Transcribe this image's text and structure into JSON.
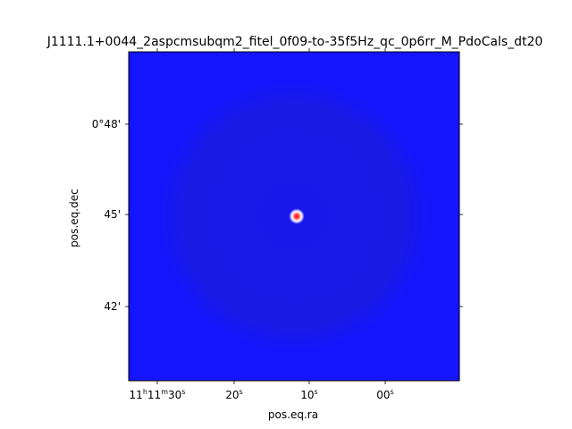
{
  "chart_data": {
    "type": "heatmap",
    "title": "J1111.1+0044_2aspcmsubqm2_fitel_0f09-to-35f5Hz_qc_0p6rr_M_PdoCals_dt20",
    "xlabel": "pos.eq.ra",
    "ylabel": "pos.eq.dec",
    "x_ticks": [
      {
        "h": "11",
        "m": "11",
        "s": "30",
        "label": "11h11m30s"
      },
      {
        "s": "20",
        "label": "20s"
      },
      {
        "s": "10",
        "label": "10s"
      },
      {
        "s": "00",
        "label": "00s"
      }
    ],
    "y_ticks": [
      "0°48'",
      "45'",
      "42'"
    ],
    "colormap": "bwr",
    "background_color": "#1414ff",
    "noise_disk_color": "#1a1ae8",
    "source": {
      "ra_offset_s": 0,
      "dec": "0°45'",
      "peak_color": "#ff0000",
      "halo_color": "#ffffff"
    }
  }
}
